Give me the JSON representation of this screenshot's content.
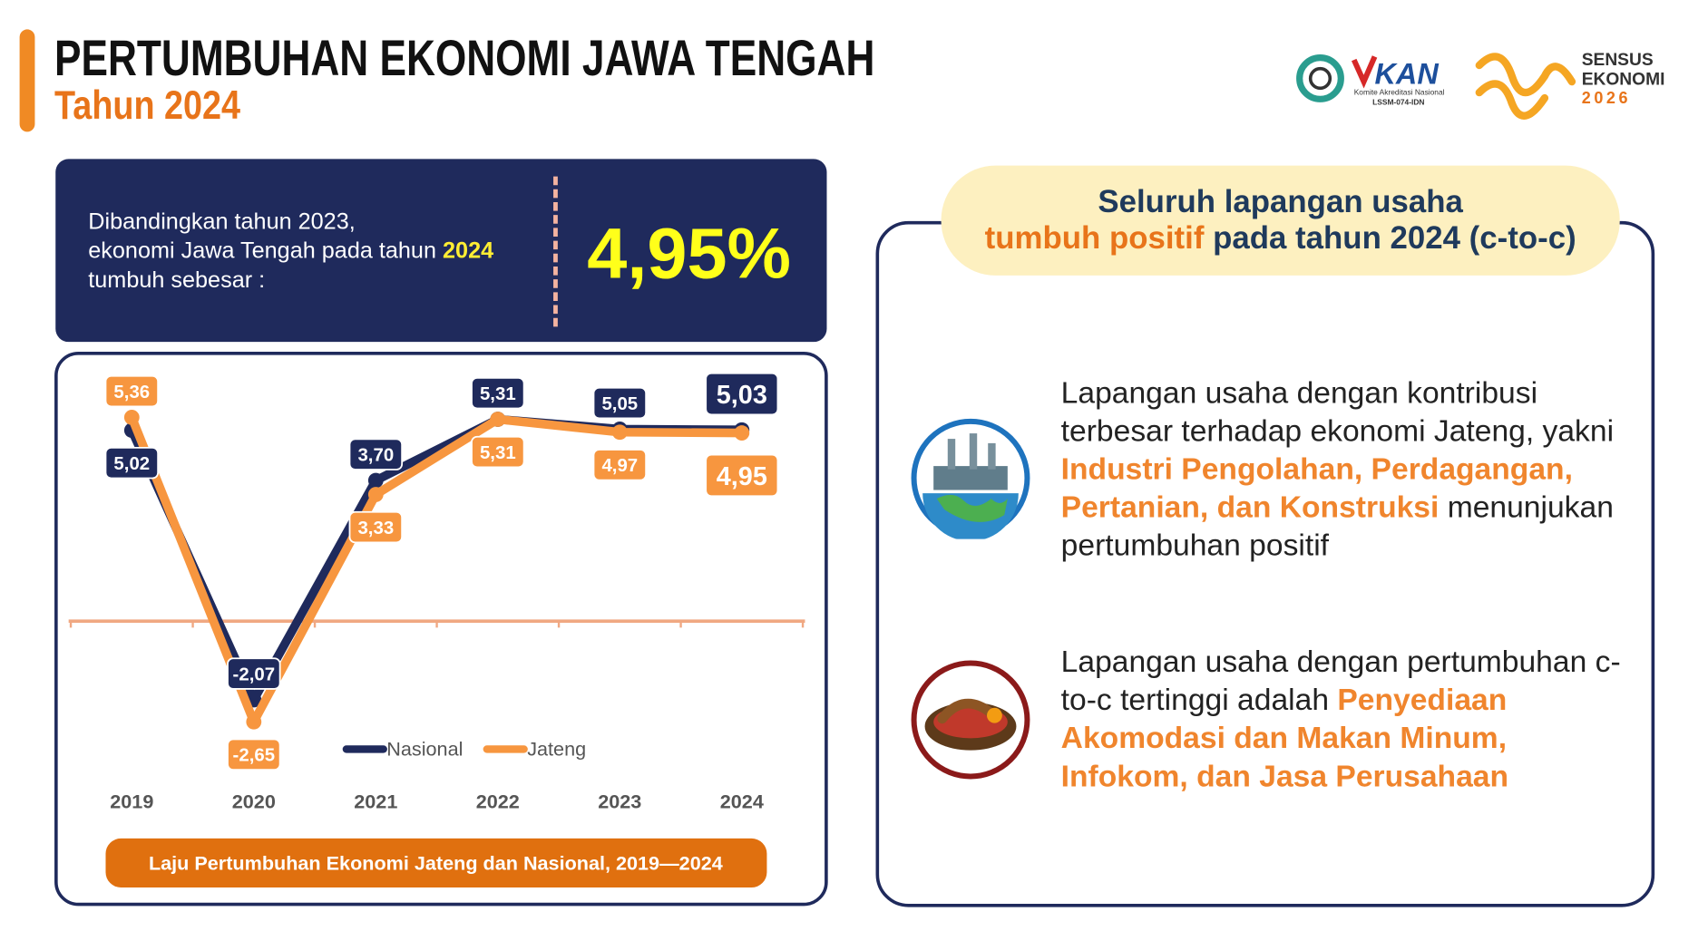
{
  "header": {
    "title": "PERTUMBUHAN EKONOMI JAWA TENGAH",
    "subtitle": "Tahun 2024"
  },
  "logos": {
    "kan": "KAN",
    "kan_sub": "Komite Akreditasi Nasional",
    "kan_code": "LSSM-074-IDN",
    "sensus_1": "SENSUS",
    "sensus_2": "EKONOMI",
    "sensus_3": "2026"
  },
  "summary": {
    "line1": "Dibandingkan tahun 2023,",
    "line2": "ekonomi Jawa Tengah pada tahun",
    "line2_year": "2024",
    "line3": "tumbuh sebesar :",
    "value": "4,95%"
  },
  "chart_data": {
    "type": "line",
    "caption": "Laju Pertumbuhan Ekonomi Jateng dan Nasional, 2019—2024",
    "categories": [
      "2019",
      "2020",
      "2021",
      "2022",
      "2023",
      "2024"
    ],
    "series": [
      {
        "name": "Nasional",
        "color": "#1f2a5c",
        "values": [
          5.02,
          -2.07,
          3.7,
          5.31,
          5.05,
          5.03
        ],
        "value_labels": [
          "5,02",
          "-2,07",
          "3,70",
          "5,31",
          "5,05",
          "5,03"
        ]
      },
      {
        "name": "Jateng",
        "color": "#f7963f",
        "values": [
          5.36,
          -2.65,
          3.33,
          5.31,
          4.97,
          4.95
        ],
        "value_labels": [
          "5,36",
          "-2,65",
          "3,33",
          "5,31",
          "4,97",
          "4,95"
        ]
      }
    ],
    "ylim": [
      -4,
      6.6
    ]
  },
  "panel": {
    "heading_1": "Seluruh lapangan usaha",
    "heading_2a": "tumbuh positif",
    "heading_2b": " pada tahun 2024 (c-to-c)",
    "point1": {
      "text": "Lapangan usaha dengan kontribusi terbesar terhadap ekonomi Jateng, yakni ",
      "highlight": "Industri Pengolahan, Perdagangan, Pertanian, dan Konstruksi",
      "end": " menunjukan pertumbuhan positif"
    },
    "point2": {
      "text": "Lapangan usaha dengan pertumbuhan c-to-c tertinggi adalah ",
      "highlight": "Penyediaan Akomodasi dan Makan Minum, Infokom, dan Jasa Perusahaan"
    }
  }
}
